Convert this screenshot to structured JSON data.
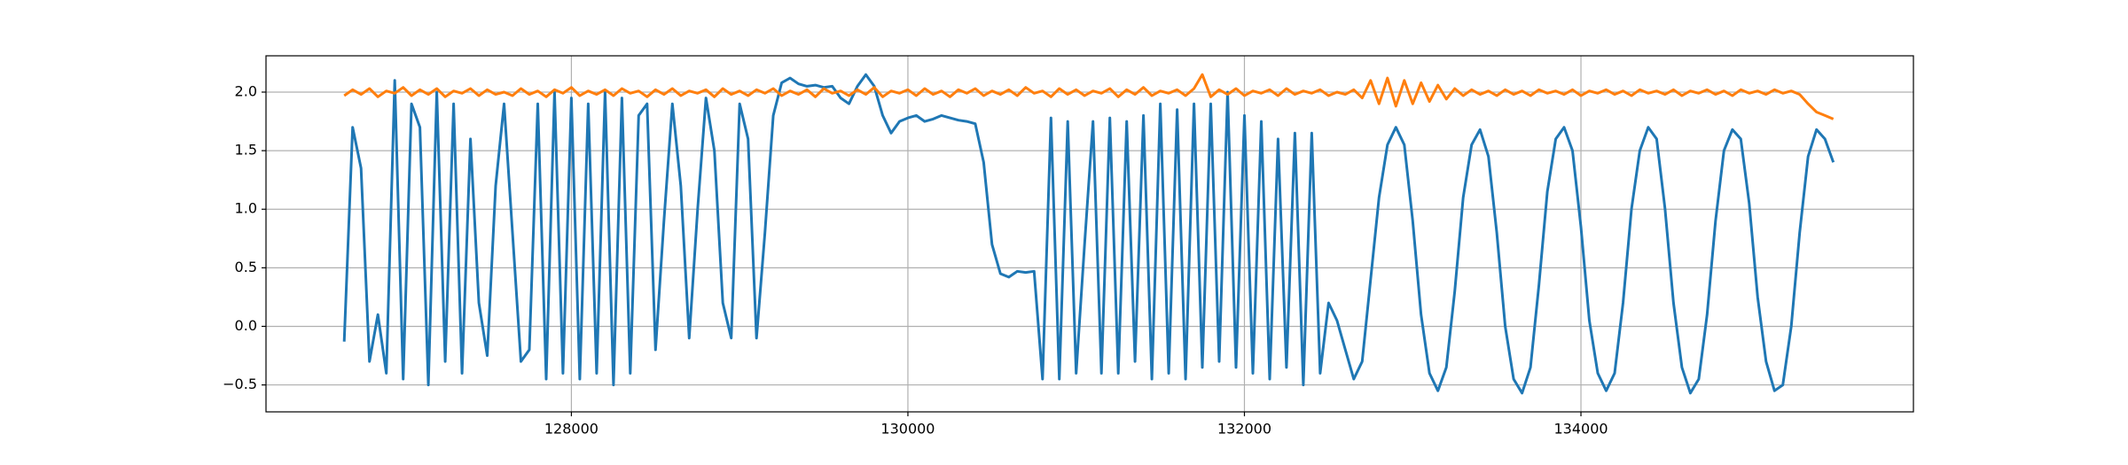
{
  "chart_data": {
    "type": "line",
    "x": [
      126650,
      126700,
      126750,
      126800,
      126850,
      126900,
      126950,
      127000,
      127050,
      127100,
      127150,
      127200,
      127250,
      127300,
      127350,
      127400,
      127450,
      127500,
      127550,
      127600,
      127650,
      127700,
      127750,
      127800,
      127850,
      127900,
      127950,
      128000,
      128050,
      128100,
      128150,
      128200,
      128250,
      128300,
      128350,
      128400,
      128450,
      128500,
      128550,
      128600,
      128650,
      128700,
      128750,
      128800,
      128850,
      128900,
      128950,
      129000,
      129050,
      129100,
      129150,
      129200,
      129250,
      129300,
      129350,
      129400,
      129450,
      129500,
      129550,
      129600,
      129650,
      129700,
      129750,
      129800,
      129850,
      129900,
      129950,
      130000,
      130050,
      130100,
      130150,
      130200,
      130250,
      130300,
      130350,
      130400,
      130450,
      130500,
      130550,
      130600,
      130650,
      130700,
      130750,
      130800,
      130850,
      130900,
      130950,
      131000,
      131050,
      131100,
      131150,
      131200,
      131250,
      131300,
      131350,
      131400,
      131450,
      131500,
      131550,
      131600,
      131650,
      131700,
      131750,
      131800,
      131850,
      131900,
      131950,
      132000,
      132050,
      132100,
      132150,
      132200,
      132250,
      132300,
      132350,
      132400,
      132450,
      132500,
      132550,
      132600,
      132650,
      132700,
      132750,
      132800,
      132850,
      132900,
      132950,
      133000,
      133050,
      133100,
      133150,
      133200,
      133250,
      133300,
      133350,
      133400,
      133450,
      133500,
      133550,
      133600,
      133650,
      133700,
      133750,
      133800,
      133850,
      133900,
      133950,
      134000,
      134050,
      134100,
      134150,
      134200,
      134250,
      134300,
      134350,
      134400,
      134450,
      134500,
      134550,
      134600,
      134650,
      134700,
      134750,
      134800,
      134850,
      134900,
      134950,
      135000,
      135050,
      135100,
      135150,
      135200,
      135250,
      135300,
      135350,
      135400,
      135450,
      135500
    ],
    "series": [
      {
        "color": "#1f77b4",
        "values": [
          -0.13,
          1.7,
          1.35,
          -0.3,
          0.1,
          -0.4,
          2.1,
          -0.45,
          1.9,
          1.7,
          -0.5,
          2.0,
          -0.3,
          1.9,
          -0.4,
          1.6,
          0.2,
          -0.25,
          1.2,
          1.9,
          0.8,
          -0.3,
          -0.2,
          1.9,
          -0.45,
          2.0,
          -0.4,
          1.95,
          -0.45,
          1.9,
          -0.4,
          2.0,
          -0.5,
          1.95,
          -0.4,
          1.8,
          1.9,
          -0.2,
          0.9,
          1.9,
          1.2,
          -0.1,
          1.0,
          1.95,
          1.5,
          0.2,
          -0.1,
          1.9,
          1.6,
          -0.1,
          0.8,
          1.8,
          2.08,
          2.12,
          2.07,
          2.05,
          2.06,
          2.04,
          2.05,
          1.95,
          1.9,
          2.05,
          2.15,
          2.05,
          1.8,
          1.65,
          1.75,
          1.78,
          1.8,
          1.75,
          1.77,
          1.8,
          1.78,
          1.76,
          1.75,
          1.73,
          1.4,
          0.7,
          0.45,
          0.42,
          0.47,
          0.46,
          0.47,
          -0.45,
          1.78,
          -0.45,
          1.75,
          -0.4,
          0.7,
          1.75,
          -0.4,
          1.78,
          -0.4,
          1.75,
          -0.3,
          1.8,
          -0.45,
          1.9,
          -0.4,
          1.85,
          -0.45,
          1.9,
          -0.35,
          1.9,
          -0.3,
          2.0,
          -0.35,
          1.8,
          -0.4,
          1.75,
          -0.45,
          1.6,
          -0.35,
          1.65,
          -0.5,
          1.65,
          -0.4,
          0.2,
          0.05,
          -0.2,
          -0.45,
          -0.3,
          0.4,
          1.1,
          1.55,
          1.7,
          1.55,
          0.9,
          0.1,
          -0.4,
          -0.55,
          -0.35,
          0.3,
          1.1,
          1.55,
          1.68,
          1.45,
          0.8,
          0.0,
          -0.45,
          -0.57,
          -0.35,
          0.35,
          1.15,
          1.6,
          1.7,
          1.5,
          0.85,
          0.05,
          -0.4,
          -0.55,
          -0.4,
          0.2,
          1.0,
          1.5,
          1.7,
          1.6,
          1.0,
          0.2,
          -0.35,
          -0.57,
          -0.45,
          0.1,
          0.9,
          1.5,
          1.68,
          1.6,
          1.05,
          0.25,
          -0.3,
          -0.55,
          -0.5,
          0.0,
          0.8,
          1.45,
          1.68,
          1.6,
          1.4
        ]
      },
      {
        "color": "#ff7f0e",
        "values": [
          1.97,
          2.02,
          1.98,
          2.03,
          1.96,
          2.01,
          1.99,
          2.04,
          1.97,
          2.02,
          1.98,
          2.03,
          1.96,
          2.01,
          1.99,
          2.03,
          1.97,
          2.02,
          1.98,
          2.0,
          1.97,
          2.03,
          1.98,
          2.01,
          1.96,
          2.02,
          1.99,
          2.04,
          1.97,
          2.01,
          1.98,
          2.02,
          1.97,
          2.03,
          1.99,
          2.01,
          1.96,
          2.02,
          1.98,
          2.03,
          1.97,
          2.01,
          1.99,
          2.02,
          1.96,
          2.03,
          1.98,
          2.01,
          1.97,
          2.02,
          1.99,
          2.03,
          1.97,
          2.01,
          1.98,
          2.02,
          1.96,
          2.03,
          1.99,
          2.01,
          1.97,
          2.02,
          1.98,
          2.04,
          1.96,
          2.01,
          1.99,
          2.02,
          1.97,
          2.03,
          1.98,
          2.01,
          1.96,
          2.02,
          1.99,
          2.03,
          1.97,
          2.01,
          1.98,
          2.02,
          1.97,
          2.04,
          1.99,
          2.01,
          1.96,
          2.03,
          1.98,
          2.02,
          1.97,
          2.01,
          1.99,
          2.03,
          1.96,
          2.02,
          1.98,
          2.04,
          1.97,
          2.01,
          1.99,
          2.02,
          1.97,
          2.03,
          2.15,
          1.96,
          2.02,
          1.98,
          2.03,
          1.97,
          2.01,
          1.99,
          2.02,
          1.97,
          2.03,
          1.98,
          2.01,
          1.99,
          2.02,
          1.97,
          2.0,
          1.98,
          2.02,
          1.95,
          2.1,
          1.9,
          2.12,
          1.88,
          2.1,
          1.9,
          2.08,
          1.92,
          2.06,
          1.94,
          2.03,
          1.97,
          2.02,
          1.98,
          2.01,
          1.97,
          2.02,
          1.98,
          2.01,
          1.97,
          2.02,
          1.99,
          2.01,
          1.98,
          2.02,
          1.97,
          2.01,
          1.99,
          2.02,
          1.98,
          2.01,
          1.97,
          2.02,
          1.99,
          2.01,
          1.98,
          2.02,
          1.97,
          2.01,
          1.99,
          2.02,
          1.98,
          2.01,
          1.97,
          2.02,
          1.99,
          2.01,
          1.98,
          2.02,
          1.99,
          2.01,
          1.98,
          1.9,
          1.83,
          1.8,
          1.77
        ]
      }
    ],
    "xlim": [
      126185,
      135976
    ],
    "ylim": [
      -0.73,
      2.31
    ],
    "xticks": [
      128000,
      130000,
      132000,
      134000
    ],
    "yticks": [
      {
        "value": -0.5,
        "label": "−0.5"
      },
      {
        "value": 0,
        "label": "0.0"
      },
      0.5,
      {
        "value": 1,
        "label": "1.0"
      },
      1.5,
      {
        "value": 2,
        "label": "2.0"
      }
    ],
    "grid": true
  }
}
